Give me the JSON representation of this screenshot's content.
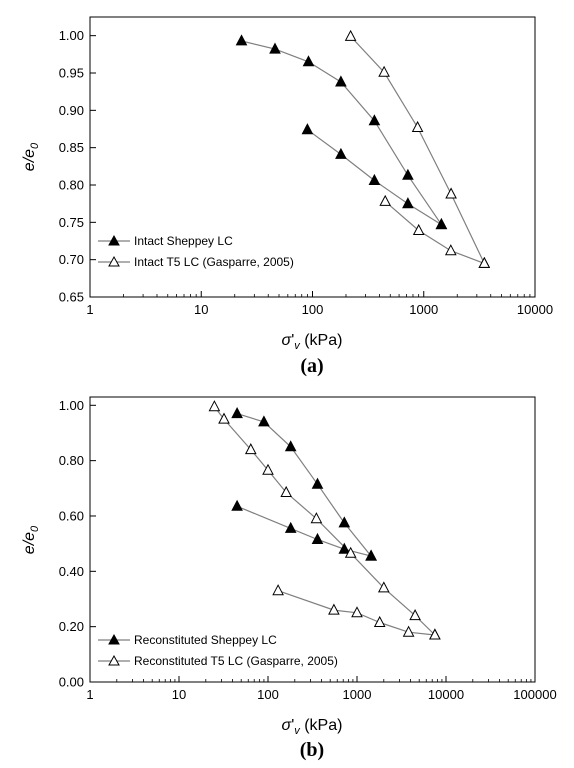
{
  "chart_data": [
    {
      "type": "line",
      "panel_label": "(a)",
      "xscale": "log",
      "xlim": [
        1,
        10000
      ],
      "ylim": [
        0.65,
        1.025
      ],
      "x_ticks": [
        1,
        10,
        100,
        1000,
        10000
      ],
      "x_tick_labels": [
        "1",
        "10",
        "100",
        "1000",
        "10000"
      ],
      "y_ticks": [
        0.65,
        0.7,
        0.75,
        0.8,
        0.85,
        0.9,
        0.95,
        1.0
      ],
      "y_tick_labels": [
        "0.65",
        "0.70",
        "0.75",
        "0.80",
        "0.85",
        "0.90",
        "0.95",
        "1.00"
      ],
      "xlabel": "σ'v (kPa)",
      "ylabel": "e/e0",
      "grid": false,
      "legend_position": "bottom-left",
      "series": [
        {
          "name": "Intact Sheppey LC",
          "marker": "filled-triangle",
          "color": "#000000",
          "points": [
            [
              23,
              0.993
            ],
            [
              46,
              0.982
            ],
            [
              92,
              0.965
            ],
            [
              180,
              0.938
            ],
            [
              360,
              0.886
            ],
            [
              720,
              0.813
            ],
            [
              1440,
              0.747
            ],
            [
              90,
              0.874
            ],
            [
              180,
              0.841
            ],
            [
              360,
              0.806
            ],
            [
              720,
              0.775
            ],
            [
              1440,
              0.747
            ]
          ],
          "segments": [
            [
              0,
              6
            ],
            [
              7,
              11
            ]
          ]
        },
        {
          "name": "Intact T5 LC (Gasparre, 2005)",
          "marker": "open-triangle",
          "color": "#000000",
          "points": [
            [
              220,
              0.999
            ],
            [
              440,
              0.951
            ],
            [
              880,
              0.877
            ],
            [
              1760,
              0.788
            ],
            [
              3500,
              0.695
            ],
            [
              450,
              0.778
            ],
            [
              900,
              0.739
            ],
            [
              1750,
              0.712
            ],
            [
              3500,
              0.695
            ]
          ],
          "segments": [
            [
              0,
              4
            ],
            [
              5,
              8
            ]
          ]
        }
      ]
    },
    {
      "type": "line",
      "panel_label": "(b)",
      "xscale": "log",
      "xlim": [
        1,
        100000
      ],
      "ylim": [
        0.0,
        1.03
      ],
      "x_ticks": [
        1,
        10,
        100,
        1000,
        10000,
        100000
      ],
      "x_tick_labels": [
        "1",
        "10",
        "100",
        "1000",
        "10000",
        "100000"
      ],
      "y_ticks": [
        0.0,
        0.2,
        0.4,
        0.6,
        0.8,
        1.0
      ],
      "y_tick_labels": [
        "0.00",
        "0.20",
        "0.40",
        "0.60",
        "0.80",
        "1.00"
      ],
      "xlabel": "σ'v (kPa)",
      "ylabel": "e/e0",
      "grid": false,
      "legend_position": "bottom-left",
      "series": [
        {
          "name": "Reconstituted Sheppey LC",
          "marker": "filled-triangle",
          "color": "#000000",
          "points": [
            [
              45,
              0.97
            ],
            [
              90,
              0.94
            ],
            [
              180,
              0.85
            ],
            [
              360,
              0.715
            ],
            [
              720,
              0.575
            ],
            [
              1440,
              0.455
            ],
            [
              45,
              0.635
            ],
            [
              180,
              0.555
            ],
            [
              360,
              0.515
            ],
            [
              720,
              0.48
            ],
            [
              1440,
              0.455
            ]
          ],
          "segments": [
            [
              0,
              5
            ],
            [
              6,
              10
            ]
          ]
        },
        {
          "name": "Reconstituted T5 LC (Gasparre, 2005)",
          "marker": "open-triangle",
          "color": "#000000",
          "points": [
            [
              25,
              0.995
            ],
            [
              32,
              0.95
            ],
            [
              64,
              0.84
            ],
            [
              100,
              0.765
            ],
            [
              160,
              0.685
            ],
            [
              350,
              0.59
            ],
            [
              850,
              0.465
            ],
            [
              2000,
              0.34
            ],
            [
              4500,
              0.24
            ],
            [
              7500,
              0.17
            ],
            [
              130,
              0.33
            ],
            [
              550,
              0.26
            ],
            [
              1000,
              0.25
            ],
            [
              1800,
              0.215
            ],
            [
              3800,
              0.18
            ],
            [
              7500,
              0.17
            ]
          ],
          "segments": [
            [
              0,
              9
            ],
            [
              10,
              15
            ]
          ]
        }
      ]
    }
  ]
}
